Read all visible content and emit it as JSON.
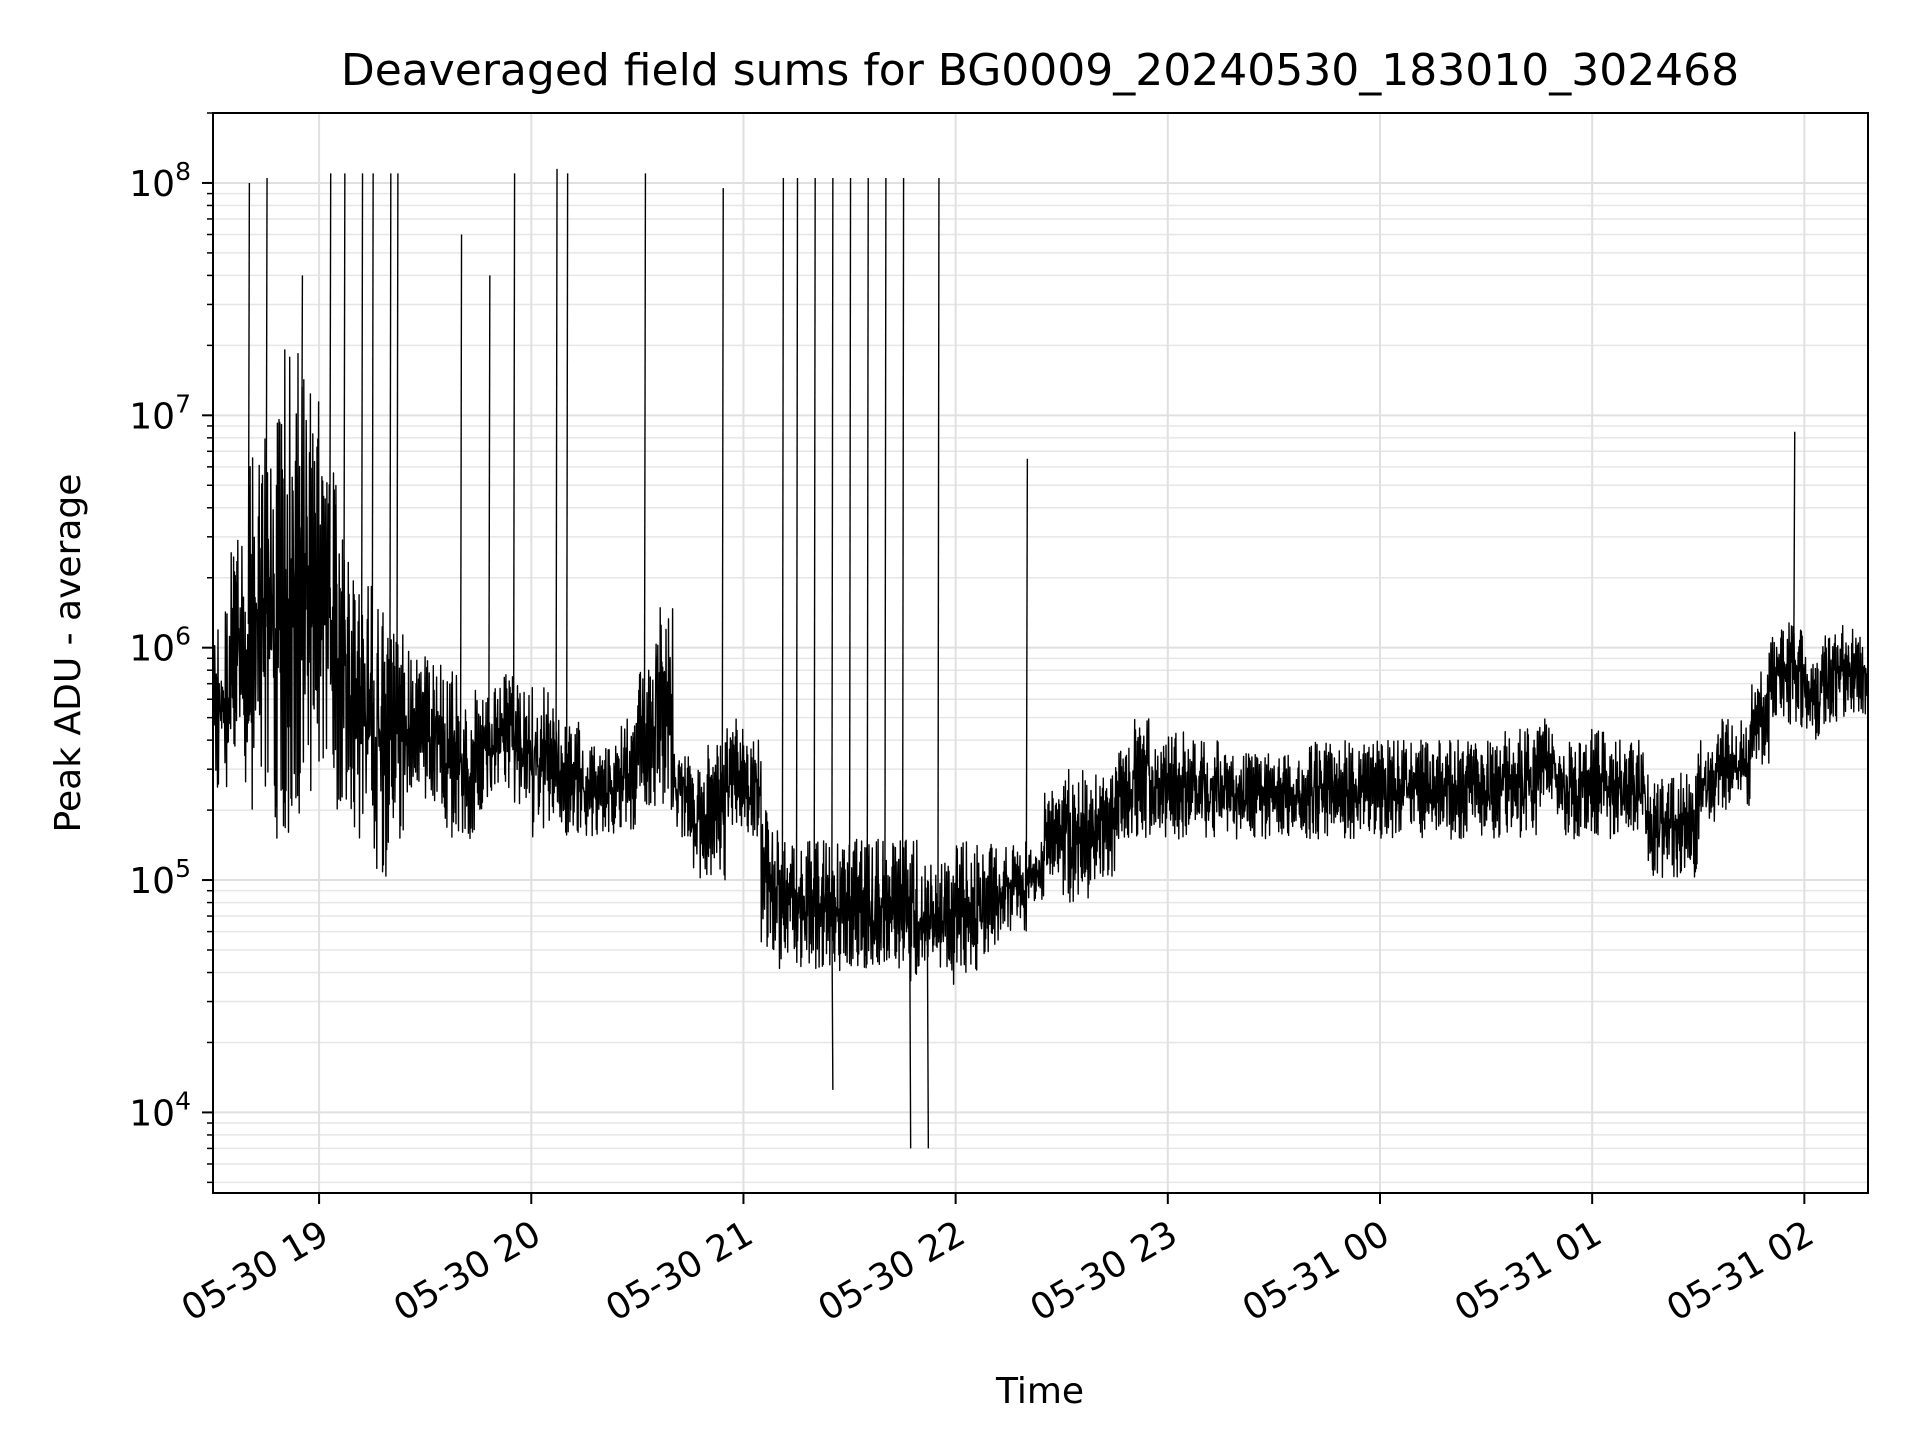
{
  "chart_data": {
    "type": "line",
    "title": "Deaveraged field sums for BG0009_20240530_183010_302468",
    "xlabel": "Time",
    "ylabel": "Peak ADU - average",
    "yscale": "log",
    "ylim": [
      4500,
      200000000
    ],
    "xlim": [
      "2024-05-30 18:30",
      "2024-05-31 02:18"
    ],
    "grid": true,
    "line_color": "#000000",
    "x_ticks": [
      {
        "t": "2024-05-30 19:00",
        "label": "05-30 19"
      },
      {
        "t": "2024-05-30 20:00",
        "label": "05-30 20"
      },
      {
        "t": "2024-05-30 21:00",
        "label": "05-30 21"
      },
      {
        "t": "2024-05-30 22:00",
        "label": "05-30 22"
      },
      {
        "t": "2024-05-30 23:00",
        "label": "05-30 23"
      },
      {
        "t": "2024-05-31 00:00",
        "label": "05-31 00"
      },
      {
        "t": "2024-05-31 01:00",
        "label": "05-31 01"
      },
      {
        "t": "2024-05-31 02:00",
        "label": "05-31 02"
      }
    ],
    "y_ticks": [
      {
        "value": 10000,
        "base": "10",
        "exp": "4"
      },
      {
        "value": 100000,
        "base": "10",
        "exp": "5"
      },
      {
        "value": 1000000,
        "base": "10",
        "exp": "6"
      },
      {
        "value": 10000000,
        "base": "10",
        "exp": "7"
      },
      {
        "value": 100000000,
        "base": "10",
        "exp": "8"
      }
    ],
    "series": [
      {
        "x": [
          "2024-05-30 18:30",
          "2024-05-30 18:35",
          "2024-05-30 18:40",
          "2024-05-30 18:45",
          "2024-05-30 18:50",
          "2024-05-30 18:55",
          "2024-05-30 19:00",
          "2024-05-30 19:05",
          "2024-05-30 19:10",
          "2024-05-30 19:15",
          "2024-05-30 19:20",
          "2024-05-30 19:25",
          "2024-05-30 19:30",
          "2024-05-30 19:35",
          "2024-05-30 19:40",
          "2024-05-30 19:45",
          "2024-05-30 19:50",
          "2024-05-30 19:55",
          "2024-05-30 20:00",
          "2024-05-30 20:05",
          "2024-05-30 20:10",
          "2024-05-30 20:15",
          "2024-05-30 20:20",
          "2024-05-30 20:25",
          "2024-05-30 20:30",
          "2024-05-30 20:35",
          "2024-05-30 20:40",
          "2024-05-30 20:45",
          "2024-05-30 20:50",
          "2024-05-30 20:55",
          "2024-05-30 21:00",
          "2024-05-30 21:05",
          "2024-05-30 21:10",
          "2024-05-30 21:15",
          "2024-05-30 21:20",
          "2024-05-30 21:25",
          "2024-05-30 21:30",
          "2024-05-30 21:35",
          "2024-05-30 21:40",
          "2024-05-30 21:45",
          "2024-05-30 21:50",
          "2024-05-30 21:55",
          "2024-05-30 22:00",
          "2024-05-30 22:05",
          "2024-05-30 22:10",
          "2024-05-30 22:15",
          "2024-05-30 22:20",
          "2024-05-30 22:25",
          "2024-05-30 22:30",
          "2024-05-30 22:35",
          "2024-05-30 22:40",
          "2024-05-30 22:45",
          "2024-05-30 22:50",
          "2024-05-30 22:55",
          "2024-05-30 23:00",
          "2024-05-30 23:05",
          "2024-05-30 23:10",
          "2024-05-30 23:15",
          "2024-05-30 23:20",
          "2024-05-30 23:25",
          "2024-05-30 23:30",
          "2024-05-30 23:35",
          "2024-05-30 23:40",
          "2024-05-30 23:45",
          "2024-05-30 23:50",
          "2024-05-30 23:55",
          "2024-05-31 00:00",
          "2024-05-31 00:05",
          "2024-05-31 00:10",
          "2024-05-31 00:15",
          "2024-05-31 00:20",
          "2024-05-31 00:25",
          "2024-05-31 00:30",
          "2024-05-31 00:35",
          "2024-05-31 00:40",
          "2024-05-31 00:45",
          "2024-05-31 00:50",
          "2024-05-31 00:55",
          "2024-05-31 01:00",
          "2024-05-31 01:05",
          "2024-05-31 01:10",
          "2024-05-31 01:15",
          "2024-05-31 01:20",
          "2024-05-31 01:25",
          "2024-05-31 01:30",
          "2024-05-31 01:35",
          "2024-05-31 01:40",
          "2024-05-31 01:45",
          "2024-05-31 01:50",
          "2024-05-31 01:55",
          "2024-05-31 02:00",
          "2024-05-31 02:05",
          "2024-05-31 02:10",
          "2024-05-31 02:15"
        ],
        "lo": [
          250000,
          250000,
          200000,
          150000,
          150000,
          200000,
          300000,
          200000,
          150000,
          100000,
          150000,
          250000,
          200000,
          150000,
          150000,
          200000,
          250000,
          200000,
          150000,
          150000,
          150000,
          150000,
          150000,
          150000,
          200000,
          200000,
          150000,
          100000,
          100000,
          150000,
          150000,
          50000,
          40000,
          40000,
          40000,
          40000,
          40000,
          40000,
          40000,
          35000,
          35000,
          35000,
          40000,
          40000,
          50000,
          60000,
          80000,
          100000,
          80000,
          80000,
          100000,
          150000,
          150000,
          150000,
          150000,
          150000,
          150000,
          150000,
          150000,
          150000,
          150000,
          150000,
          150000,
          150000,
          150000,
          150000,
          150000,
          150000,
          150000,
          150000,
          150000,
          150000,
          150000,
          150000,
          150000,
          200000,
          150000,
          150000,
          150000,
          150000,
          150000,
          100000,
          100000,
          100000,
          150000,
          200000,
          200000,
          300000,
          500000,
          450000,
          400000,
          450000,
          500000,
          500000
        ],
        "hi": [
          1500000,
          3000000,
          8000000,
          10000000,
          20000000,
          15000000,
          6000000,
          3000000,
          2000000,
          1500000,
          1200000,
          1000000,
          900000,
          800000,
          700000,
          700000,
          800000,
          700000,
          700000,
          600000,
          500000,
          400000,
          400000,
          500000,
          800000,
          1500000,
          400000,
          300000,
          400000,
          500000,
          400000,
          200000,
          150000,
          150000,
          150000,
          150000,
          150000,
          150000,
          150000,
          150000,
          120000,
          120000,
          150000,
          150000,
          150000,
          150000,
          150000,
          250000,
          300000,
          300000,
          300000,
          400000,
          500000,
          400000,
          450000,
          400000,
          400000,
          350000,
          350000,
          350000,
          350000,
          350000,
          400000,
          400000,
          400000,
          400000,
          400000,
          400000,
          400000,
          400000,
          400000,
          400000,
          400000,
          450000,
          450000,
          500000,
          400000,
          450000,
          450000,
          400000,
          400000,
          300000,
          300000,
          300000,
          400000,
          500000,
          500000,
          800000,
          1200000,
          1300000,
          1000000,
          1200000,
          1300000,
          1200000
        ]
      }
    ],
    "spikes": [
      {
        "t": "2024-05-30 18:40",
        "value": 100000000
      },
      {
        "t": "2024-05-30 18:45",
        "value": 105000000
      },
      {
        "t": "2024-05-30 19:03",
        "value": 110000000
      },
      {
        "t": "2024-05-30 19:07",
        "value": 110000000
      },
      {
        "t": "2024-05-30 19:12",
        "value": 110000000
      },
      {
        "t": "2024-05-30 19:15",
        "value": 110000000
      },
      {
        "t": "2024-05-30 19:20",
        "value": 110000000
      },
      {
        "t": "2024-05-30 19:22",
        "value": 110000000
      },
      {
        "t": "2024-05-30 19:40",
        "value": 60000000
      },
      {
        "t": "2024-05-30 19:48",
        "value": 40000000
      },
      {
        "t": "2024-05-30 19:55",
        "value": 110000000
      },
      {
        "t": "2024-05-30 20:07",
        "value": 115000000
      },
      {
        "t": "2024-05-30 20:10",
        "value": 110000000
      },
      {
        "t": "2024-05-30 20:32",
        "value": 110000000
      },
      {
        "t": "2024-05-30 20:54",
        "value": 95000000
      },
      {
        "t": "2024-05-30 21:11",
        "value": 105000000
      },
      {
        "t": "2024-05-30 21:15",
        "value": 105000000
      },
      {
        "t": "2024-05-30 21:20",
        "value": 105000000
      },
      {
        "t": "2024-05-30 21:25",
        "value": 105000000
      },
      {
        "t": "2024-05-30 21:30",
        "value": 105000000
      },
      {
        "t": "2024-05-30 21:35",
        "value": 105000000
      },
      {
        "t": "2024-05-30 21:40",
        "value": 105000000
      },
      {
        "t": "2024-05-30 21:45",
        "value": 105000000
      },
      {
        "t": "2024-05-30 21:55",
        "value": 105000000
      },
      {
        "t": "2024-05-30 22:20",
        "value": 6500000
      },
      {
        "t": "2024-05-31 01:57",
        "value": 8500000
      },
      {
        "t": "2024-05-30 18:55",
        "value": 40000000
      },
      {
        "t": "2024-05-30 21:47",
        "value": 7000
      },
      {
        "t": "2024-05-30 21:52",
        "value": 7000
      },
      {
        "t": "2024-05-30 21:25",
        "value": 12500
      }
    ]
  }
}
